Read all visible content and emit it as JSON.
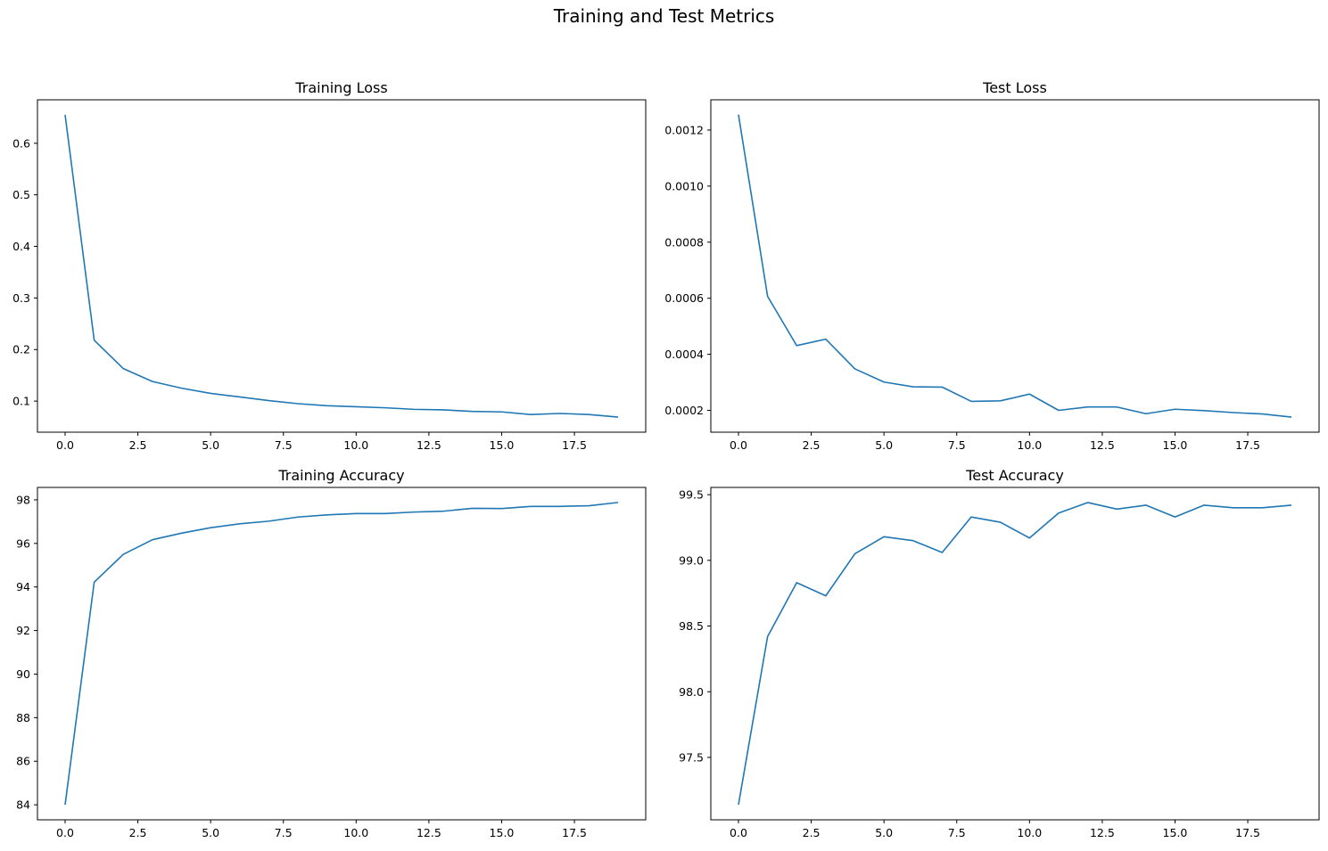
{
  "figure": {
    "title": "Training and Test Metrics"
  },
  "line_color": "#1f77b4",
  "chart_data": [
    {
      "type": "line",
      "title": "Training Loss",
      "xlabel": "",
      "ylabel": "",
      "x": [
        0,
        1,
        2,
        3,
        4,
        5,
        6,
        7,
        8,
        9,
        10,
        11,
        12,
        13,
        14,
        15,
        16,
        17,
        18,
        19
      ],
      "series": [
        {
          "values": [
            0.655,
            0.218,
            0.163,
            0.138,
            0.125,
            0.115,
            0.108,
            0.101,
            0.095,
            0.091,
            0.089,
            0.087,
            0.084,
            0.083,
            0.08,
            0.079,
            0.074,
            0.076,
            0.074,
            0.069
          ]
        }
      ],
      "xlim": [
        -0.95,
        19.95
      ],
      "ylim": [
        0.0397,
        0.6843
      ],
      "xticks": [
        0,
        2.5,
        5,
        7.5,
        10,
        12.5,
        15,
        17.5
      ],
      "xtick_labels": [
        "0.0",
        "2.5",
        "5.0",
        "7.5",
        "10.0",
        "12.5",
        "15.0",
        "17.5"
      ],
      "yticks": [
        0.1,
        0.2,
        0.3,
        0.4,
        0.5,
        0.6
      ],
      "ytick_labels": [
        "0.1",
        "0.2",
        "0.3",
        "0.4",
        "0.5",
        "0.6"
      ],
      "grid": false
    },
    {
      "type": "line",
      "title": "Test Loss",
      "xlabel": "",
      "ylabel": "",
      "x": [
        0,
        1,
        2,
        3,
        4,
        5,
        6,
        7,
        8,
        9,
        10,
        11,
        12,
        13,
        14,
        15,
        16,
        17,
        18,
        19
      ],
      "series": [
        {
          "values": [
            0.001255,
            0.000607,
            0.000431,
            0.000454,
            0.000348,
            0.000301,
            0.000284,
            0.000283,
            0.000232,
            0.000234,
            0.000258,
            0.0002,
            0.000212,
            0.000212,
            0.000188,
            0.000204,
            0.000199,
            0.000192,
            0.000187,
            0.000176
          ]
        }
      ],
      "xlim": [
        -0.95,
        19.95
      ],
      "ylim": [
        0.0001221,
        0.0013079
      ],
      "xticks": [
        0,
        2.5,
        5,
        7.5,
        10,
        12.5,
        15,
        17.5
      ],
      "xtick_labels": [
        "0.0",
        "2.5",
        "5.0",
        "7.5",
        "10.0",
        "12.5",
        "15.0",
        "17.5"
      ],
      "yticks": [
        0.0002,
        0.0004,
        0.0006,
        0.0008,
        0.001,
        0.0012
      ],
      "ytick_labels": [
        "0.0002",
        "0.0004",
        "0.0006",
        "0.0008",
        "0.0010",
        "0.0012"
      ],
      "grid": false
    },
    {
      "type": "line",
      "title": "Training Accuracy",
      "xlabel": "",
      "ylabel": "",
      "x": [
        0,
        1,
        2,
        3,
        4,
        5,
        6,
        7,
        8,
        9,
        10,
        11,
        12,
        13,
        14,
        15,
        16,
        17,
        18,
        19
      ],
      "series": [
        {
          "values": [
            84.0,
            94.22,
            95.5,
            96.17,
            96.47,
            96.72,
            96.9,
            97.02,
            97.21,
            97.31,
            97.37,
            97.37,
            97.44,
            97.48,
            97.61,
            97.6,
            97.7,
            97.7,
            97.73,
            97.88
          ]
        }
      ],
      "xlim": [
        -0.95,
        19.95
      ],
      "ylim": [
        83.31,
        98.57
      ],
      "xticks": [
        0,
        2.5,
        5,
        7.5,
        10,
        12.5,
        15,
        17.5
      ],
      "xtick_labels": [
        "0.0",
        "2.5",
        "5.0",
        "7.5",
        "10.0",
        "12.5",
        "15.0",
        "17.5"
      ],
      "yticks": [
        84,
        86,
        88,
        90,
        92,
        94,
        96,
        98
      ],
      "ytick_labels": [
        "84",
        "86",
        "88",
        "90",
        "92",
        "94",
        "96",
        "98"
      ],
      "grid": false
    },
    {
      "type": "line",
      "title": "Test Accuracy",
      "xlabel": "",
      "ylabel": "",
      "x": [
        0,
        1,
        2,
        3,
        4,
        5,
        6,
        7,
        8,
        9,
        10,
        11,
        12,
        13,
        14,
        15,
        16,
        17,
        18,
        19
      ],
      "series": [
        {
          "values": [
            97.14,
            98.42,
            98.83,
            98.73,
            99.05,
            99.18,
            99.15,
            99.06,
            99.33,
            99.29,
            99.17,
            99.36,
            99.44,
            99.39,
            99.42,
            99.33,
            99.42,
            99.4,
            99.4,
            99.42
          ]
        }
      ],
      "xlim": [
        -0.95,
        19.95
      ],
      "ylim": [
        97.025,
        99.555
      ],
      "xticks": [
        0,
        2.5,
        5,
        7.5,
        10,
        12.5,
        15,
        17.5
      ],
      "xtick_labels": [
        "0.0",
        "2.5",
        "5.0",
        "7.5",
        "10.0",
        "12.5",
        "15.0",
        "17.5"
      ],
      "yticks": [
        97.5,
        98.0,
        98.5,
        99.0,
        99.5
      ],
      "ytick_labels": [
        "97.5",
        "98.0",
        "98.5",
        "99.0",
        "99.5"
      ],
      "grid": false
    }
  ]
}
